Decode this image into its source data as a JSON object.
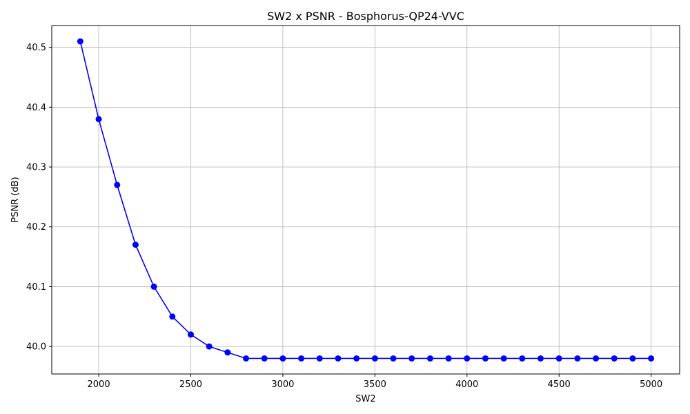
{
  "chart_data": {
    "type": "line",
    "title": "SW2 x PSNR - Bosphorus-QP24-VVC",
    "xlabel": "SW2",
    "ylabel": "PSNR (dB)",
    "xlim": [
      1745,
      5155
    ],
    "ylim": [
      39.954,
      40.5365
    ],
    "xticks": [
      2000,
      2500,
      3000,
      3500,
      4000,
      4500,
      5000
    ],
    "yticks": [
      40.0,
      40.1,
      40.2,
      40.3,
      40.4,
      40.5
    ],
    "xtick_labels": [
      "2000",
      "2500",
      "3000",
      "3500",
      "4000",
      "4500",
      "5000"
    ],
    "ytick_labels": [
      "40.0",
      "40.1",
      "40.2",
      "40.3",
      "40.4",
      "40.5"
    ],
    "grid": true,
    "series": [
      {
        "color": "#0000ff",
        "marker": "circle",
        "x": [
          1900,
          2000,
          2100,
          2200,
          2300,
          2400,
          2500,
          2600,
          2700,
          2800,
          2900,
          3000,
          3100,
          3200,
          3300,
          3400,
          3500,
          3600,
          3700,
          3800,
          3900,
          4000,
          4100,
          4200,
          4300,
          4400,
          4500,
          4600,
          4700,
          4800,
          4900,
          5000
        ],
        "y": [
          40.51,
          40.38,
          40.27,
          40.17,
          40.1,
          40.05,
          40.02,
          40.0,
          39.99,
          39.98,
          39.98,
          39.98,
          39.98,
          39.98,
          39.98,
          39.98,
          39.98,
          39.98,
          39.98,
          39.98,
          39.98,
          39.98,
          39.98,
          39.98,
          39.98,
          39.98,
          39.98,
          39.98,
          39.98,
          39.98,
          39.98,
          39.98
        ]
      }
    ]
  }
}
